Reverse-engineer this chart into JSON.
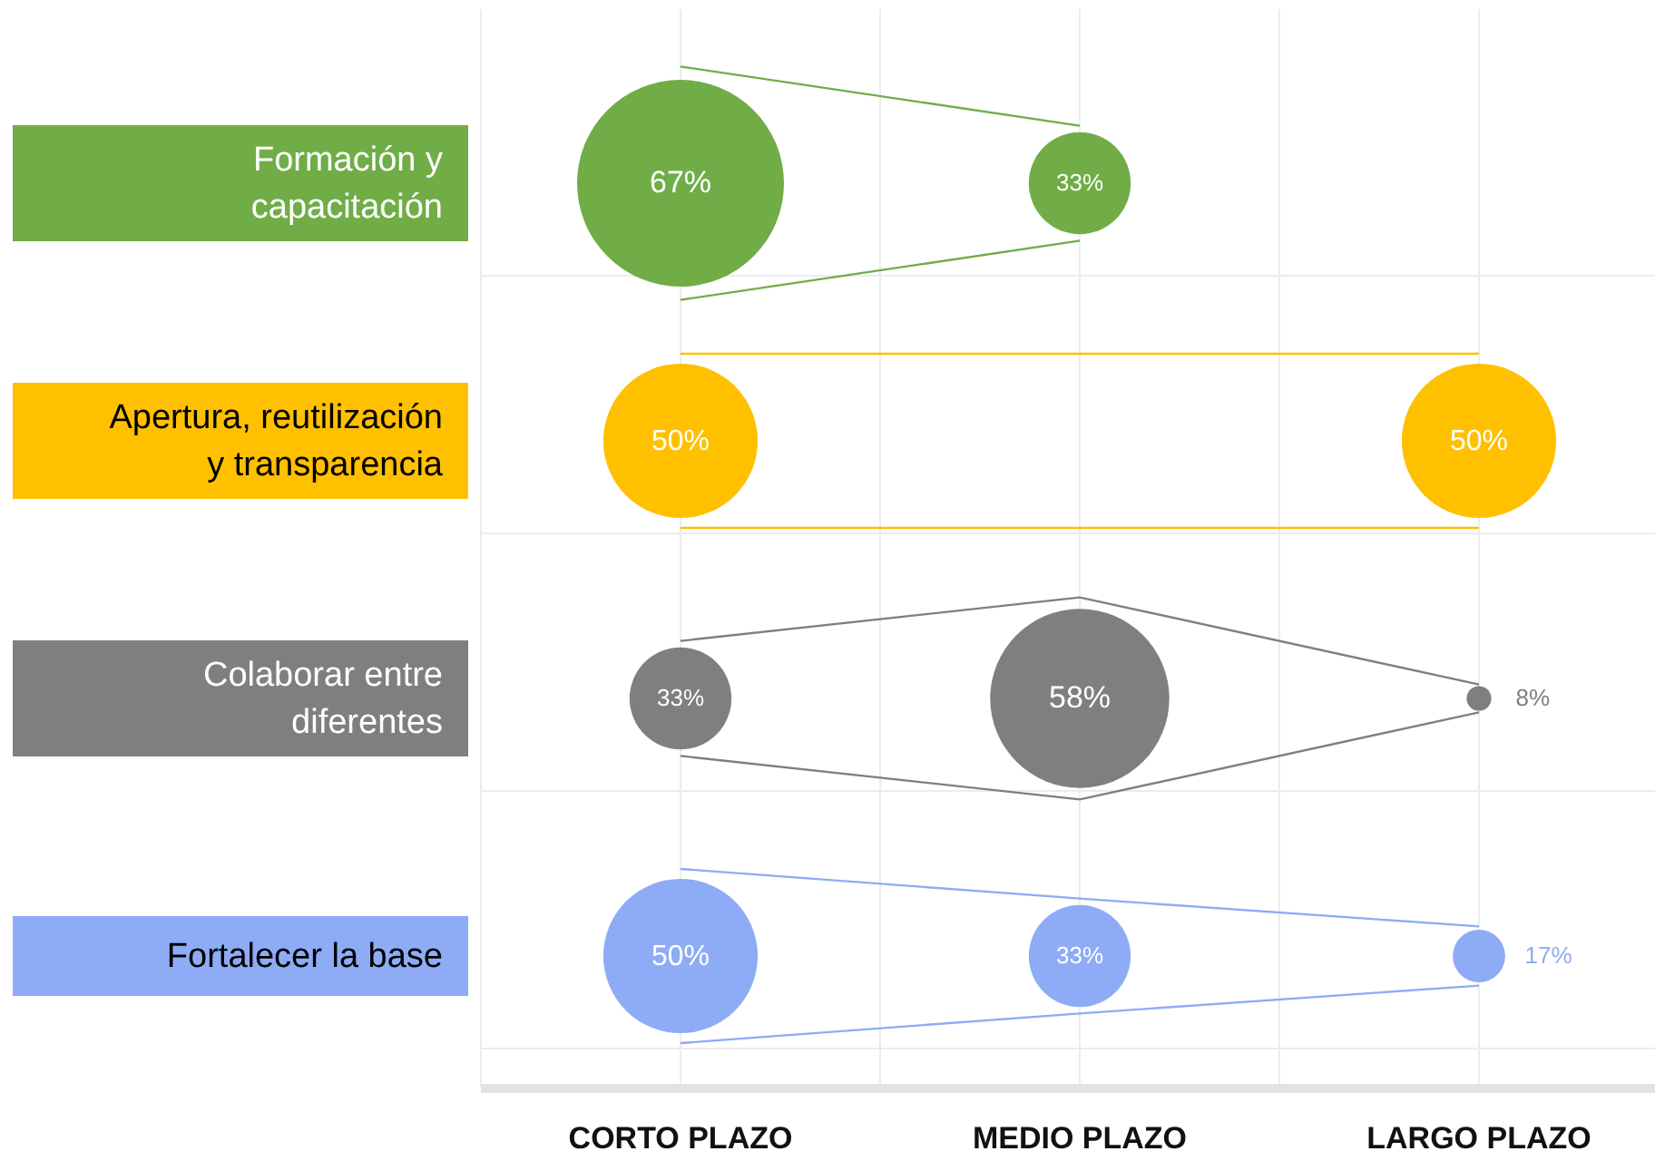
{
  "chart_data": {
    "type": "other",
    "categories": [
      "CORTO PLAZO",
      "MEDIO PLAZO",
      "LARGO PLAZO"
    ],
    "series": [
      {
        "name": "Formación y capacitación",
        "color": "#70ad47",
        "values": [
          67,
          33,
          null
        ],
        "value_labels": [
          "67%",
          "33%",
          null
        ]
      },
      {
        "name": "Apertura, reutilización y transparencia",
        "color": "#ffc000",
        "values": [
          50,
          null,
          50
        ],
        "value_labels": [
          "50%",
          null,
          "50%"
        ]
      },
      {
        "name": "Colaborar entre diferentes",
        "color": "#7f7f7f",
        "values": [
          33,
          58,
          8
        ],
        "value_labels": [
          "33%",
          "58%",
          "8%"
        ]
      },
      {
        "name": "Fortalecer la base",
        "color": "#8eacf5",
        "values": [
          50,
          33,
          17
        ],
        "value_labels": [
          "50%",
          "33%",
          "17%"
        ]
      }
    ]
  }
}
